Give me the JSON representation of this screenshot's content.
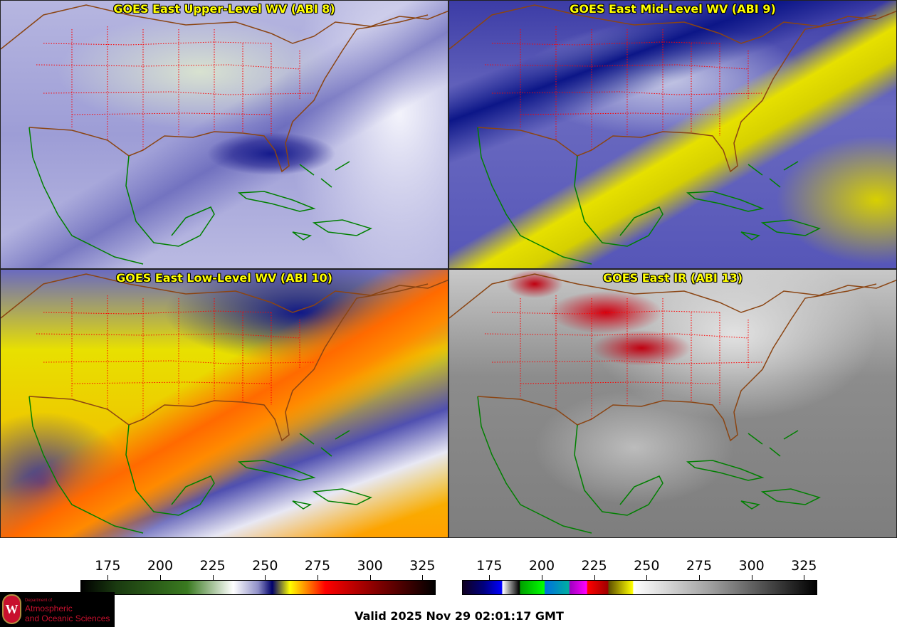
{
  "panels": [
    {
      "title": "GOES East Upper-Level WV (ABI 8)"
    },
    {
      "title": "GOES East Mid-Level WV (ABI 9)"
    },
    {
      "title": "GOES East Low-Level WV (ABI 10)"
    },
    {
      "title": "GOES East IR (ABI 13)"
    }
  ],
  "colorbars": [
    {
      "name": "water-vapor",
      "ticks": [
        "175",
        "200",
        "225",
        "250",
        "275",
        "300",
        "325"
      ],
      "range": [
        162,
        331
      ]
    },
    {
      "name": "infrared",
      "ticks": [
        "175",
        "200",
        "225",
        "250",
        "275",
        "300",
        "325"
      ],
      "range": [
        162,
        331
      ]
    }
  ],
  "logo": {
    "line1": "Department of",
    "line2": "Atmospheric",
    "line3": "and Oceanic Sciences",
    "seal": "W"
  },
  "valid": "Valid 2025 Nov 29 02:01:17 GMT",
  "colors": {
    "title": "#ffff00",
    "coast": "#008000",
    "borders": "#ff0000",
    "country": "#8b4513"
  }
}
